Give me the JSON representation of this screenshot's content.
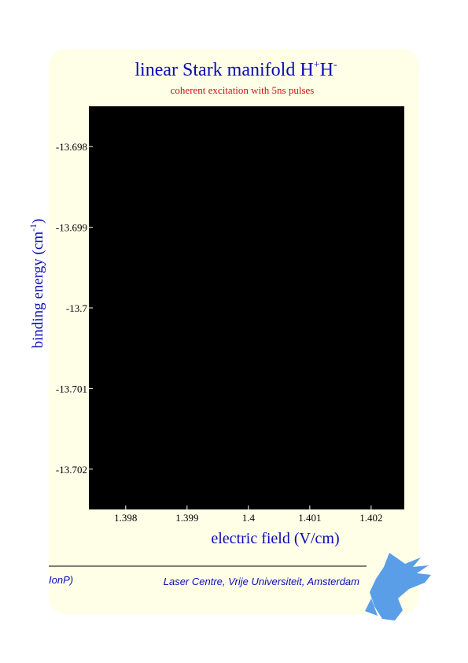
{
  "chart_data": {
    "type": "density",
    "title": [
      "linear Stark manifold H",
      "+",
      "H",
      "-"
    ],
    "subtitle": "coherent excitation with 5ns pulses",
    "x_label": "electric field (V/cm)",
    "y_label": [
      "binding energy (cm",
      "-1",
      ")"
    ],
    "xlim": [
      1.3974,
      1.40254
    ],
    "xticks": [
      1.398,
      1.399,
      1.4,
      1.401,
      1.402
    ],
    "ylim": [
      -13.7025,
      -13.6975
    ],
    "yticks": [
      -13.698,
      -13.699,
      -13.7,
      -13.701,
      -13.702
    ]
  },
  "footer": {
    "left": "IonP)",
    "right": "Laser Centre, Vrije Universiteit, Amsterdam"
  }
}
